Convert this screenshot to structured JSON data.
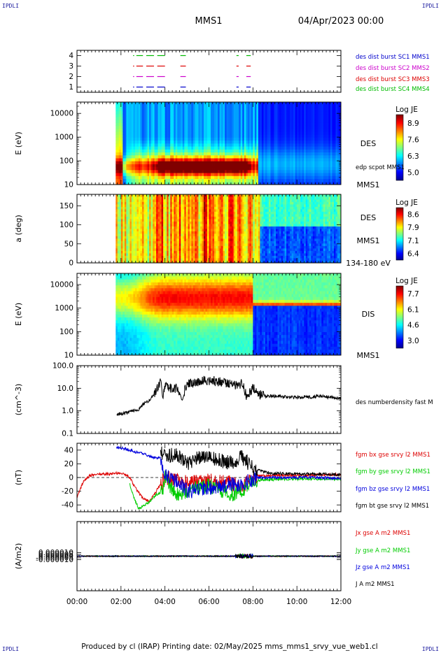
{
  "header": {
    "corner_left": "IPDLI",
    "corner_right": "IPDLI",
    "corner_bottom_left": "IPDLI",
    "corner_bottom_right": "IPDLI",
    "spacecraft": "MMS1",
    "date": "04/Apr/2023 00:00"
  },
  "footer": {
    "text": "Produced by cl (IRAP)   Printing date: 02/May/2025   mms_mms1_srvy_vue_web1.cl"
  },
  "colors": {
    "burst1": "#0000cc",
    "burst2": "#cc00cc",
    "burst3": "#dd0000",
    "burst4": "#00bb00",
    "bx": "#dd0000",
    "by": "#00cc00",
    "bz": "#0000dd",
    "bt": "#000000"
  },
  "chart_data": [
    {
      "id": "burst",
      "type": "scatter",
      "ylim": [
        0.5,
        4.5
      ],
      "yticks": [
        "1",
        "2",
        "3",
        "4"
      ],
      "series": [
        {
          "name": "des dist burst SC1 MMS1",
          "y": 1,
          "segments": [
            [
              2.55,
              2.6
            ],
            [
              2.7,
              3.0
            ],
            [
              3.15,
              3.5
            ],
            [
              3.65,
              4.0
            ],
            [
              4.7,
              4.95
            ],
            [
              7.25,
              7.35
            ],
            [
              7.7,
              7.9
            ]
          ]
        },
        {
          "name": "des dist burst SC2 MMS2",
          "y": 2,
          "segments": [
            [
              2.55,
              2.6
            ],
            [
              2.7,
              3.0
            ],
            [
              3.15,
              3.5
            ],
            [
              3.65,
              4.0
            ],
            [
              4.7,
              4.95
            ],
            [
              7.25,
              7.35
            ],
            [
              7.7,
              7.9
            ]
          ]
        },
        {
          "name": "des dist burst SC3 MMS3",
          "y": 3,
          "segments": [
            [
              2.55,
              2.6
            ],
            [
              2.7,
              3.0
            ],
            [
              3.15,
              3.5
            ],
            [
              3.65,
              4.0
            ],
            [
              4.7,
              4.95
            ],
            [
              7.25,
              7.35
            ],
            [
              7.7,
              7.9
            ]
          ]
        },
        {
          "name": "des dist burst SC4 MMS4",
          "y": 4,
          "segments": [
            [
              2.55,
              2.6
            ],
            [
              2.7,
              3.0
            ],
            [
              3.15,
              3.5
            ],
            [
              3.65,
              4.0
            ],
            [
              4.7,
              4.95
            ],
            [
              7.25,
              7.35
            ],
            [
              7.7,
              7.9
            ]
          ]
        }
      ]
    },
    {
      "id": "des_e",
      "type": "heatmap",
      "ylabel": "E (eV)",
      "log": true,
      "ylim": [
        10,
        30000
      ],
      "yticks": [
        "10",
        "100",
        "1000",
        "10000"
      ],
      "right_labels": [
        "DES",
        "edp scpot MMS1",
        "MMS1"
      ],
      "colorbar": {
        "title": "Log JE",
        "ticks": [
          "8.9",
          "7.6",
          "6.3",
          "5.0"
        ],
        "range": [
          5.0,
          8.9
        ]
      }
    },
    {
      "id": "des_pa",
      "type": "heatmap",
      "ylabel": "a (deg)",
      "ylim": [
        0,
        180
      ],
      "yticks": [
        "0",
        "50",
        "100",
        "150"
      ],
      "right_labels": [
        "DES",
        "MMS1",
        "134-180 eV"
      ],
      "colorbar": {
        "title": "Log JE",
        "ticks": [
          "8.6",
          "7.9",
          "7.1",
          "6.4"
        ],
        "range": [
          6.4,
          8.6
        ]
      }
    },
    {
      "id": "dis_e",
      "type": "heatmap",
      "ylabel": "E (eV)",
      "log": true,
      "ylim": [
        10,
        30000
      ],
      "yticks": [
        "10",
        "100",
        "1000",
        "10000"
      ],
      "right_labels": [
        "DIS",
        "MMS1"
      ],
      "colorbar": {
        "title": "Log JE",
        "ticks": [
          "7.7",
          "6.1",
          "4.6",
          "3.0"
        ],
        "range": [
          3.0,
          7.7
        ]
      }
    },
    {
      "id": "density",
      "type": "line",
      "ylabel": "(cm^-3)",
      "log": true,
      "ylim": [
        0.1,
        100
      ],
      "yticks": [
        "0.1",
        "1.0",
        "10.0",
        "100.0"
      ],
      "series": [
        {
          "name": "des numberdensity fast M",
          "x": [
            1.8,
            2.2,
            2.5,
            2.8,
            3.0,
            3.3,
            3.6,
            3.8,
            3.9,
            4.0,
            4.2,
            4.5,
            4.8,
            5.0,
            5.3,
            5.6,
            6.0,
            6.5,
            7.0,
            7.3,
            7.5,
            7.7,
            8.0,
            8.3,
            8.6,
            9.0,
            9.5,
            10.0,
            10.5,
            11.0,
            11.5,
            12.0
          ],
          "y": [
            0.7,
            0.8,
            1.0,
            1.1,
            2.0,
            3.0,
            8.0,
            20.0,
            5.0,
            12.0,
            9.0,
            10.0,
            4.0,
            15.0,
            18.0,
            20.0,
            22.0,
            20.0,
            17.0,
            12.0,
            18.0,
            5.0,
            10.0,
            5.0,
            4.5,
            4.5,
            4.2,
            4.0,
            4.0,
            4.5,
            4.0,
            3.5
          ]
        }
      ]
    },
    {
      "id": "bfield",
      "type": "line",
      "ylabel": "(nT)",
      "ylim": [
        -50,
        50
      ],
      "yticks": [
        "-40",
        "-20",
        "0",
        "20",
        "40"
      ],
      "series": [
        {
          "name": "fgm bx gse srvy l2 MMS1",
          "x": [
            0.0,
            0.3,
            0.6,
            1.0,
            1.5,
            2.0,
            2.4,
            2.6,
            2.8,
            3.0,
            3.3,
            3.5,
            3.8,
            4.0,
            4.5,
            5.0,
            6.0,
            7.0,
            7.5,
            8.0,
            9.0,
            10.0,
            11.0,
            12.0
          ],
          "y": [
            -28.0,
            -5.0,
            3.0,
            5.0,
            5.0,
            7.0,
            0.0,
            -12.0,
            -22.0,
            -30.0,
            -35.0,
            -25.0,
            -10.0,
            0.0,
            -3.0,
            -8.0,
            -5.0,
            -8.0,
            -15.0,
            2.0,
            3.0,
            3.0,
            4.0,
            4.0
          ]
        },
        {
          "name": "fgm by gse srvy l2 MMS1",
          "x": [
            2.4,
            2.6,
            2.8,
            3.0,
            3.3,
            3.6,
            3.9,
            4.0,
            4.3,
            4.7,
            5.0,
            5.5,
            6.0,
            6.5,
            7.0,
            7.5,
            8.0,
            8.5,
            9.0,
            10.0,
            11.0,
            12.0
          ],
          "y": [
            -10.0,
            -30.0,
            -45.0,
            -42.0,
            -35.0,
            -25.0,
            -20.0,
            0.0,
            -15.0,
            -30.0,
            -20.0,
            -15.0,
            -12.0,
            -18.0,
            -25.0,
            -20.0,
            -5.0,
            -3.0,
            -3.0,
            -2.0,
            -2.0,
            -2.0
          ]
        },
        {
          "name": "fgm bz gse srvy l2 MMS1",
          "x": [
            1.8,
            2.2,
            2.6,
            3.0,
            3.4,
            3.8,
            4.0,
            4.3,
            4.8,
            5.0,
            5.5,
            6.0,
            7.0,
            7.5,
            7.8,
            8.2,
            9.0,
            10.0,
            11.0,
            12.0
          ],
          "y": [
            44.0,
            42.0,
            38.0,
            35.0,
            30.0,
            28.0,
            5.0,
            0.0,
            -10.0,
            -20.0,
            -18.0,
            -15.0,
            -10.0,
            -12.0,
            -5.0,
            0.0,
            0.0,
            0.0,
            0.0,
            -2.0
          ]
        },
        {
          "name": "fgm bt gse srvy l2 MMS1",
          "x": [
            3.8,
            4.0,
            4.5,
            5.0,
            5.5,
            6.0,
            6.5,
            7.0,
            7.5,
            8.0,
            8.5,
            9.0,
            10.0,
            11.0,
            12.0
          ],
          "y": [
            40.0,
            30.0,
            35.0,
            20.0,
            28.0,
            30.0,
            25.0,
            22.0,
            30.0,
            15.0,
            8.0,
            6.0,
            5.0,
            5.0,
            4.0
          ]
        }
      ]
    },
    {
      "id": "current",
      "type": "line",
      "ylabel": "(A/m2)",
      "ylim": [
        -0.0001,
        0.0001
      ],
      "yticks": [
        "-0.000010",
        "-0.000005",
        "0.000000",
        "0.000005",
        "0.000010"
      ],
      "series": [
        {
          "name": "Jx gse A m2 MMS1",
          "x": [
            0.0,
            12.0
          ],
          "y": [
            0.0,
            0.0
          ]
        },
        {
          "name": "Jy gse A m2 MMS1",
          "x": [
            0.0,
            12.0
          ],
          "y": [
            0.0,
            0.0
          ]
        },
        {
          "name": "Jz gse A m2 MMS1",
          "x": [
            0.0,
            12.0
          ],
          "y": [
            0.0,
            0.0
          ]
        },
        {
          "name": "J A m2 MMS1",
          "x": [
            0.0,
            12.0
          ],
          "y": [
            0.0,
            0.0
          ]
        }
      ]
    }
  ],
  "xaxis": {
    "range": [
      0,
      12
    ],
    "ticks": [
      "00:00",
      "02:00",
      "04:00",
      "06:00",
      "08:00",
      "10:00",
      "12:00"
    ]
  }
}
